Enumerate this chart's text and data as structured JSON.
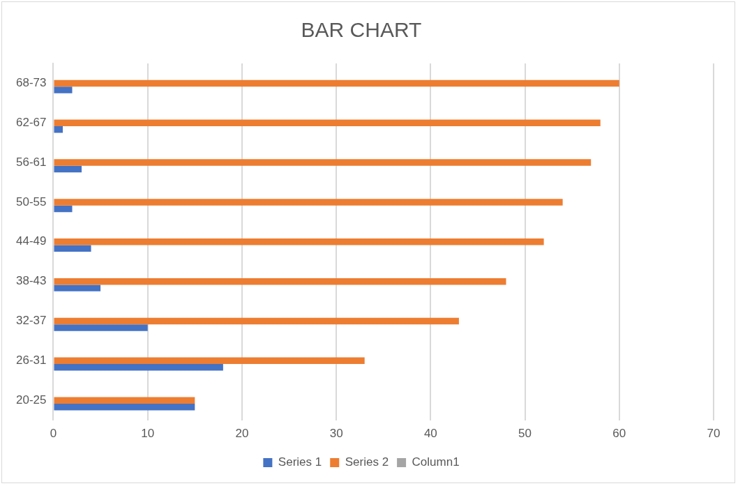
{
  "chart_data": {
    "type": "bar",
    "title": "BAR CHART",
    "orientation": "horizontal",
    "categories": [
      "68-73",
      "62-67",
      "56-61",
      "50-55",
      "44-49",
      "38-43",
      "32-37",
      "26-31",
      "20-25"
    ],
    "series": [
      {
        "name": "Column1",
        "color": "#a5a5a5",
        "values": [
          null,
          null,
          null,
          null,
          null,
          null,
          null,
          null,
          null
        ]
      },
      {
        "name": "Series 2",
        "color": "#ed7d31",
        "values": [
          60,
          58,
          57,
          54,
          52,
          48,
          43,
          33,
          15
        ]
      },
      {
        "name": "Series 1",
        "color": "#4472c4",
        "values": [
          2,
          1,
          3,
          2,
          4,
          5,
          10,
          18,
          15
        ]
      }
    ],
    "xlim": [
      0,
      70
    ],
    "xticks": [
      0,
      10,
      20,
      30,
      40,
      50,
      60,
      70
    ],
    "grid": "x",
    "legend": "bottom"
  }
}
